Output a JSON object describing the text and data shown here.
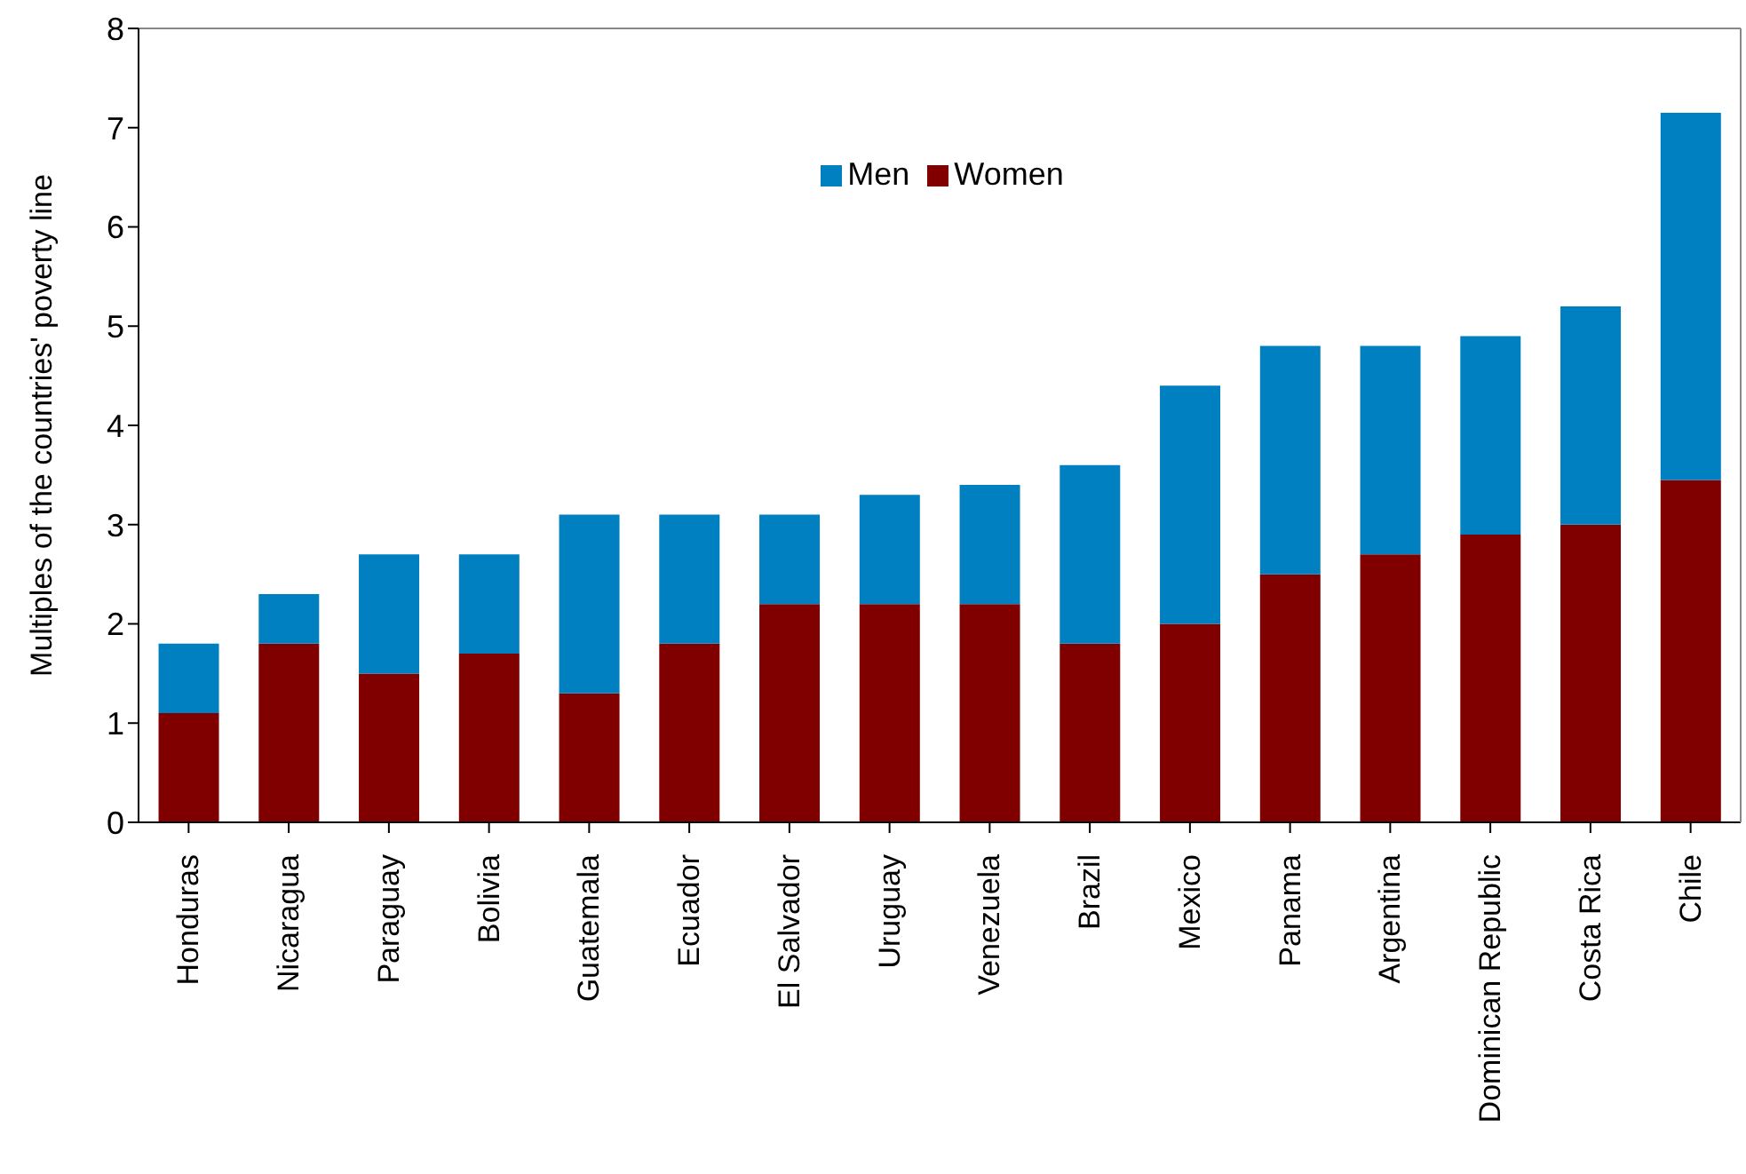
{
  "chart_data": {
    "type": "bar",
    "stacked": true,
    "ylabel": "Multiples of the countries' poverty line",
    "categories": [
      "Honduras",
      "Nicaragua",
      "Paraguay",
      "Bolivia",
      "Guatemala",
      "Ecuador",
      "El Salvador",
      "Uruguay",
      "Venezuela",
      "Brazil",
      "Mexico",
      "Panama",
      "Argentina",
      "Dominican Republic",
      "Costa Rica",
      "Chile"
    ],
    "series": [
      {
        "name": "Women",
        "color": "#800000",
        "values": [
          1.1,
          1.8,
          1.5,
          1.7,
          1.3,
          1.8,
          2.2,
          2.2,
          2.2,
          1.8,
          2.0,
          2.5,
          2.7,
          2.9,
          3.0,
          3.45
        ]
      },
      {
        "name": "Men",
        "color": "#0080c0",
        "values": [
          0.7,
          0.5,
          1.2,
          1.0,
          1.8,
          1.3,
          0.9,
          1.1,
          1.2,
          1.8,
          2.4,
          2.3,
          2.1,
          2.0,
          2.2,
          3.7
        ]
      }
    ],
    "ylim": [
      0,
      8
    ],
    "yticks": [
      0,
      1,
      2,
      3,
      4,
      5,
      6,
      7,
      8
    ],
    "grid": false,
    "legend": "top"
  }
}
